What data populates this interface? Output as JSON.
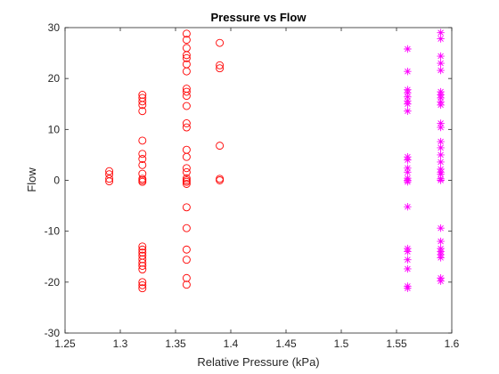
{
  "chart_data": {
    "type": "scatter",
    "title": "Pressure vs Flow",
    "xlabel": "Relative Pressure (kPa)",
    "ylabel": "Flow",
    "xlim": [
      1.25,
      1.6
    ],
    "ylim": [
      -30,
      30
    ],
    "xticks": [
      "1.25",
      "1.3",
      "1.35",
      "1.4",
      "1.45",
      "1.5",
      "1.55",
      "1.6"
    ],
    "yticks": [
      "-30",
      "-20",
      "-10",
      "0",
      "10",
      "20",
      "30"
    ],
    "grid": false,
    "legend": "none",
    "series": [
      {
        "marker": "circle",
        "color": "#ff0000",
        "points": [
          [
            1.29,
            1.8
          ],
          [
            1.29,
            1.2
          ],
          [
            1.29,
            0.3
          ],
          [
            1.29,
            -0.2
          ],
          [
            1.32,
            16.8
          ],
          [
            1.32,
            16.2
          ],
          [
            1.32,
            15.5
          ],
          [
            1.32,
            14.8
          ],
          [
            1.32,
            13.6
          ],
          [
            1.32,
            7.8
          ],
          [
            1.32,
            5.2
          ],
          [
            1.32,
            4.2
          ],
          [
            1.32,
            3.0
          ],
          [
            1.32,
            1.3
          ],
          [
            1.32,
            0.3
          ],
          [
            1.32,
            0.0
          ],
          [
            1.32,
            -0.3
          ],
          [
            1.32,
            -13.0
          ],
          [
            1.32,
            -13.6
          ],
          [
            1.32,
            -14.2
          ],
          [
            1.32,
            -14.8
          ],
          [
            1.32,
            -15.5
          ],
          [
            1.32,
            -16.2
          ],
          [
            1.32,
            -16.8
          ],
          [
            1.32,
            -17.5
          ],
          [
            1.32,
            -20.0
          ],
          [
            1.32,
            -20.6
          ],
          [
            1.32,
            -21.2
          ],
          [
            1.36,
            28.8
          ],
          [
            1.36,
            27.6
          ],
          [
            1.36,
            26.0
          ],
          [
            1.36,
            24.6
          ],
          [
            1.36,
            24.0
          ],
          [
            1.36,
            22.8
          ],
          [
            1.36,
            21.4
          ],
          [
            1.36,
            18.0
          ],
          [
            1.36,
            17.4
          ],
          [
            1.36,
            16.6
          ],
          [
            1.36,
            14.6
          ],
          [
            1.36,
            11.2
          ],
          [
            1.36,
            10.4
          ],
          [
            1.36,
            6.0
          ],
          [
            1.36,
            4.6
          ],
          [
            1.36,
            2.4
          ],
          [
            1.36,
            1.6
          ],
          [
            1.36,
            0.4
          ],
          [
            1.36,
            0.0
          ],
          [
            1.36,
            -0.3
          ],
          [
            1.36,
            -0.7
          ],
          [
            1.36,
            -5.3
          ],
          [
            1.36,
            -9.4
          ],
          [
            1.36,
            -13.6
          ],
          [
            1.36,
            -15.6
          ],
          [
            1.36,
            -19.2
          ],
          [
            1.36,
            -20.5
          ],
          [
            1.39,
            27.0
          ],
          [
            1.39,
            22.6
          ],
          [
            1.39,
            22.0
          ],
          [
            1.39,
            6.8
          ],
          [
            1.39,
            0.3
          ],
          [
            1.39,
            0.0
          ]
        ]
      },
      {
        "marker": "star",
        "color": "#ff00ff",
        "points": [
          [
            1.56,
            25.8
          ],
          [
            1.56,
            21.4
          ],
          [
            1.56,
            17.8
          ],
          [
            1.56,
            17.2
          ],
          [
            1.56,
            16.4
          ],
          [
            1.56,
            15.6
          ],
          [
            1.56,
            15.0
          ],
          [
            1.56,
            13.6
          ],
          [
            1.56,
            4.6
          ],
          [
            1.56,
            4.0
          ],
          [
            1.56,
            2.4
          ],
          [
            1.56,
            1.6
          ],
          [
            1.56,
            0.4
          ],
          [
            1.56,
            0.0
          ],
          [
            1.56,
            -0.3
          ],
          [
            1.56,
            -5.2
          ],
          [
            1.56,
            -13.4
          ],
          [
            1.56,
            -14.0
          ],
          [
            1.56,
            -15.6
          ],
          [
            1.56,
            -17.4
          ],
          [
            1.56,
            -20.8
          ],
          [
            1.56,
            -21.2
          ],
          [
            1.59,
            29.0
          ],
          [
            1.59,
            27.8
          ],
          [
            1.59,
            24.4
          ],
          [
            1.59,
            23.0
          ],
          [
            1.59,
            21.6
          ],
          [
            1.59,
            17.4
          ],
          [
            1.59,
            16.8
          ],
          [
            1.59,
            16.2
          ],
          [
            1.59,
            15.4
          ],
          [
            1.59,
            14.8
          ],
          [
            1.59,
            11.2
          ],
          [
            1.59,
            10.4
          ],
          [
            1.59,
            7.6
          ],
          [
            1.59,
            6.4
          ],
          [
            1.59,
            5.0
          ],
          [
            1.59,
            3.6
          ],
          [
            1.59,
            2.2
          ],
          [
            1.59,
            1.6
          ],
          [
            1.59,
            1.2
          ],
          [
            1.59,
            0.3
          ],
          [
            1.59,
            0.0
          ],
          [
            1.59,
            -9.4
          ],
          [
            1.59,
            -12.0
          ],
          [
            1.59,
            -13.4
          ],
          [
            1.59,
            -14.0
          ],
          [
            1.59,
            -14.6
          ],
          [
            1.59,
            -15.2
          ],
          [
            1.59,
            -19.2
          ],
          [
            1.59,
            -19.8
          ]
        ]
      }
    ]
  }
}
